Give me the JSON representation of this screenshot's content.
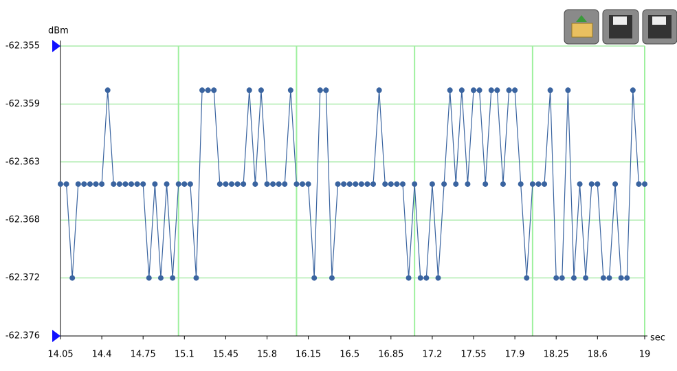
{
  "chart_data": {
    "type": "line",
    "y_axis_label": "dBm",
    "x_axis_label": "sec",
    "x": [
      14.05,
      14.1,
      14.15,
      14.2,
      14.25,
      14.3,
      14.35,
      14.4,
      14.45,
      14.5,
      14.55,
      14.6,
      14.65,
      14.7,
      14.75,
      14.8,
      14.85,
      14.9,
      14.95,
      15,
      15.05,
      15.1,
      15.15,
      15.2,
      15.25,
      15.3,
      15.35,
      15.4,
      15.45,
      15.5,
      15.55,
      15.6,
      15.65,
      15.7,
      15.75,
      15.8,
      15.85,
      15.9,
      15.95,
      16,
      16.05,
      16.1,
      16.15,
      16.2,
      16.25,
      16.3,
      16.35,
      16.4,
      16.45,
      16.5,
      16.55,
      16.6,
      16.65,
      16.7,
      16.75,
      16.8,
      16.85,
      16.9,
      16.95,
      17,
      17.05,
      17.1,
      17.15,
      17.2,
      17.25,
      17.3,
      17.35,
      17.4,
      17.45,
      17.5,
      17.55,
      17.6,
      17.65,
      17.7,
      17.75,
      17.8,
      17.85,
      17.9,
      17.95,
      18,
      18.05,
      18.1,
      18.15,
      18.2,
      18.25,
      18.3,
      18.35,
      18.4,
      18.45,
      18.5,
      18.55,
      18.6,
      18.65,
      18.7,
      18.75,
      18.8,
      18.85,
      18.9,
      18.95,
      19
    ],
    "series": [
      {
        "name": "dBm",
        "color": "#3a64a0",
        "values": [
          -62.365,
          -62.365,
          -62.3718,
          -62.365,
          -62.365,
          -62.365,
          -62.365,
          -62.365,
          -62.3582,
          -62.365,
          -62.365,
          -62.365,
          -62.365,
          -62.365,
          -62.365,
          -62.3718,
          -62.365,
          -62.3718,
          -62.365,
          -62.3718,
          -62.365,
          -62.365,
          -62.365,
          -62.3718,
          -62.3582,
          -62.3582,
          -62.3582,
          -62.365,
          -62.365,
          -62.365,
          -62.365,
          -62.365,
          -62.3582,
          -62.365,
          -62.3582,
          -62.365,
          -62.365,
          -62.365,
          -62.365,
          -62.3582,
          -62.365,
          -62.365,
          -62.365,
          -62.3718,
          -62.3582,
          -62.3582,
          -62.3718,
          -62.365,
          -62.365,
          -62.365,
          -62.365,
          -62.365,
          -62.365,
          -62.365,
          -62.3582,
          -62.365,
          -62.365,
          -62.365,
          -62.365,
          -62.3718,
          -62.365,
          -62.3718,
          -62.3718,
          -62.365,
          -62.3718,
          -62.365,
          -62.3582,
          -62.365,
          -62.3582,
          -62.365,
          -62.3582,
          -62.3582,
          -62.365,
          -62.3582,
          -62.3582,
          -62.365,
          -62.3582,
          -62.3582,
          -62.365,
          -62.3718,
          -62.365,
          -62.365,
          -62.365,
          -62.3582,
          -62.3718,
          -62.3718,
          -62.3582,
          -62.3718,
          -62.365,
          -62.3718,
          -62.365,
          -62.365,
          -62.3718,
          -62.3718,
          -62.365,
          -62.3718,
          -62.3718,
          -62.3582,
          -62.365,
          -62.365
        ]
      }
    ],
    "xlim": [
      14.05,
      19
    ],
    "ylim": [
      -62.355,
      -62.376
    ],
    "xticks": [
      14.05,
      14.4,
      14.75,
      15.1,
      15.45,
      15.8,
      16.15,
      16.5,
      16.85,
      17.2,
      17.55,
      17.9,
      18.25,
      18.6,
      19
    ],
    "yticks": [
      -62.355,
      {
        "value": -62.3592,
        "label": "-62.359"
      },
      {
        "value": -62.3634,
        "label": "-62.363"
      },
      {
        "value": -62.3676,
        "label": "-62.368"
      },
      {
        "value": -62.3718,
        "label": "-62.372"
      },
      -62.376
    ],
    "xgrid_lines": [
      15.05,
      16.05,
      17.05,
      18.05,
      19
    ],
    "grid": true
  }
}
